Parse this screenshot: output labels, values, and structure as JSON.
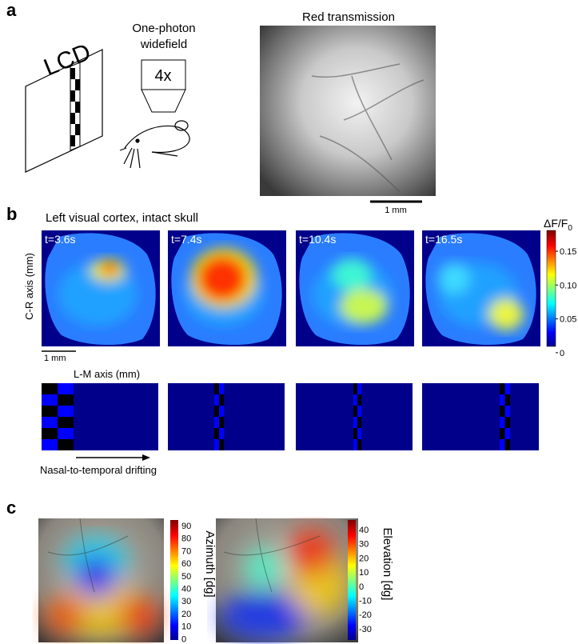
{
  "panel_a": {
    "label": "a",
    "screen_label": "LCD",
    "objective_label": [
      "One-photon",
      "widefield"
    ],
    "magnification": "4x",
    "image_title": "Red transmission",
    "scale_bar": "1 mm"
  },
  "panel_b": {
    "label": "b",
    "title": "Left visual cortex, intact skull",
    "time_labels": [
      "t=3.6s",
      "t=7.4s",
      "t=10.4s",
      "t=16.5s"
    ],
    "colorbar_title": "ΔF/F",
    "colorbar_title_subscript": "0",
    "colorbar_ticks": [
      "0.15",
      "0.10",
      "0.05",
      "0"
    ],
    "y_axis_label": "C-R axis (mm)",
    "scale_bar": "1 mm",
    "x_axis_label": "L-M axis (mm)",
    "stimulus_caption": "Nasal-to-temporal drifting"
  },
  "panel_c": {
    "label": "c",
    "maps": [
      {
        "colorbar_title": "Azimuth [dg]",
        "colorbar_ticks": [
          "90",
          "80",
          "70",
          "60",
          "50",
          "40",
          "30",
          "20",
          "10",
          "0"
        ]
      },
      {
        "colorbar_title": "Elevation [dg]",
        "colorbar_ticks": [
          "40",
          "30",
          "20",
          "10",
          "0",
          "-10",
          "-20",
          "-30"
        ]
      }
    ]
  }
}
